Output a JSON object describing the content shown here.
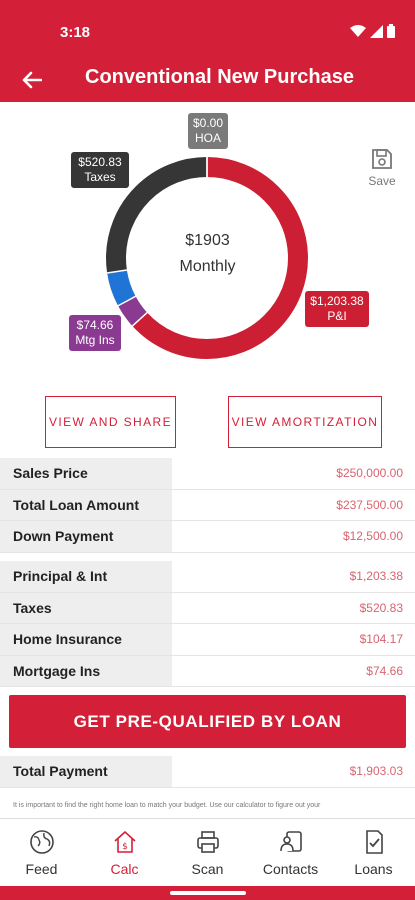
{
  "status_bar": {
    "time": "3:18"
  },
  "app_bar": {
    "title": "Conventional New Purchase"
  },
  "chart_data": {
    "type": "pie",
    "style": "donut",
    "center_amount": "$1903",
    "center_label": "Monthly",
    "slices": [
      {
        "name": "P&I",
        "value": 1203.38,
        "label": "$1,203.38",
        "color": "#cc1f33"
      },
      {
        "name": "Mtg Ins",
        "value": 74.66,
        "label": "$74.66",
        "color": "#8b3a91"
      },
      {
        "name": "Home Insurance",
        "value": 104.17,
        "label": "",
        "color": "#1f74d6"
      },
      {
        "name": "Taxes",
        "value": 520.83,
        "label": "$520.83",
        "color": "#363636"
      },
      {
        "name": "HOA",
        "value": 0.0,
        "label": "$0.00",
        "color": "#7a7a7a"
      }
    ],
    "tags": {
      "hoa": {
        "amount": "$0.00",
        "name": "HOA"
      },
      "taxes": {
        "amount": "$520.83",
        "name": "Taxes"
      },
      "pi": {
        "amount": "$1,203.38",
        "name": "P&I"
      },
      "mi": {
        "amount": "$74.66",
        "name": "Mtg Ins"
      }
    }
  },
  "save": {
    "label": "Save"
  },
  "actions": {
    "view_share": "VIEW AND SHARE",
    "view_amortization": "VIEW AMORTIZATION"
  },
  "loan_summary": [
    {
      "label": "Sales Price",
      "value": "$250,000.00"
    },
    {
      "label": "Total Loan Amount",
      "value": "$237,500.00"
    },
    {
      "label": "Down Payment",
      "value": "$12,500.00"
    }
  ],
  "payment_breakdown": [
    {
      "label": "Principal & Int",
      "value": "$1,203.38"
    },
    {
      "label": "Taxes",
      "value": "$520.83"
    },
    {
      "label": "Home Insurance",
      "value": "$104.17"
    },
    {
      "label": "Mortgage Ins",
      "value": "$74.66"
    }
  ],
  "prequal_button": "GET PRE-QUALIFIED BY LOAN",
  "total_payment": {
    "label": "Total Payment",
    "value": "$1,903.03"
  },
  "disclaimer": "It is important to find the right home loan to match your budget. Use our calculator to figure out your",
  "bottom_nav": [
    {
      "label": "Feed",
      "icon": "globe-icon"
    },
    {
      "label": "Calc",
      "icon": "calculator-house-icon"
    },
    {
      "label": "Scan",
      "icon": "printer-icon"
    },
    {
      "label": "Contacts",
      "icon": "contacts-icon"
    },
    {
      "label": "Loans",
      "icon": "document-check-icon"
    }
  ],
  "colors": {
    "brand": "#d31f37",
    "value_text": "#d8646f",
    "label_bg": "#eeeeee"
  }
}
